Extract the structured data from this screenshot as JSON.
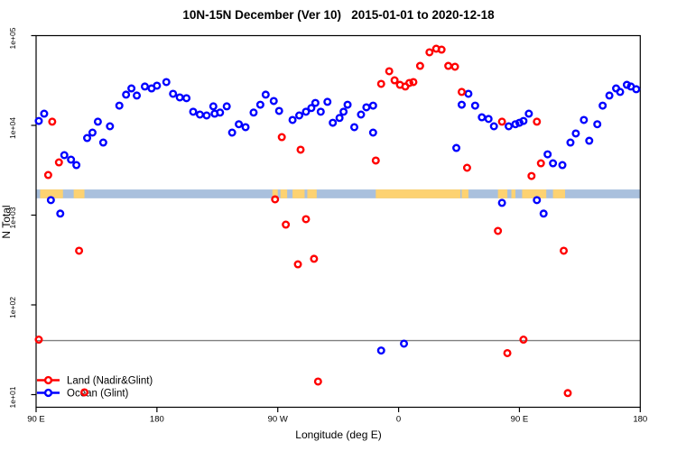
{
  "chart_data": {
    "type": "scatter",
    "title": "10N-15N December (Ver 10)   2015-01-01 to 2020-12-18",
    "xlabel": "Longitude (deg E)",
    "ylabel": "N Total",
    "x_axis": {
      "tick_labels": [
        "90 E",
        "180",
        "90 W",
        "0",
        "90 E",
        "180"
      ],
      "tick_plot_lons": [
        90,
        180,
        270,
        360,
        450,
        540
      ],
      "range_plot_lon": [
        90,
        540
      ],
      "wrap_note": "axis starts at 90E, wraps through 180, 90W, 0, back to 180; plot longitudes >180 shown as west/east wrapped labels"
    },
    "y_axis": {
      "scale": "log10",
      "tick_labels": [
        "1e+05",
        "1e+04",
        "1e+03",
        "1e+02",
        "1e+01"
      ],
      "tick_values": [
        100000,
        10000,
        1000,
        100,
        10
      ],
      "range": [
        10,
        100000
      ]
    },
    "reference_line": {
      "value": 40,
      "color": "#808080"
    },
    "map_strip": {
      "description": "thin world-map band at 10N-15N drawn across the plot",
      "value_top": 1930,
      "value_bottom": 1540,
      "ocean_color": "#a9c0dd",
      "land_color": "#fdd271",
      "land_segments_plot_lon": [
        [
          93,
          110
        ],
        [
          118,
          126
        ],
        [
          266,
          270
        ],
        [
          272,
          277
        ],
        [
          281,
          290
        ],
        [
          292,
          299
        ],
        [
          343,
          406
        ],
        [
          407,
          412
        ],
        [
          434,
          441
        ],
        [
          444,
          447
        ],
        [
          452,
          470
        ],
        [
          475,
          484
        ]
      ]
    },
    "legend": {
      "position": "bottom-left"
    },
    "series": [
      {
        "name": "Land (Nadir&Glint)",
        "color": "#ff0000",
        "marker": "open-circle",
        "points": [
          [
            92,
            41
          ],
          [
            99,
            2800
          ],
          [
            102,
            11000
          ],
          [
            107,
            3870
          ],
          [
            122,
            401
          ],
          [
            126,
            10.6
          ],
          [
            268,
            1500
          ],
          [
            273,
            7400
          ],
          [
            276,
            784
          ],
          [
            285,
            283
          ],
          [
            287,
            5360
          ],
          [
            291,
            902
          ],
          [
            297,
            326
          ],
          [
            300,
            14
          ],
          [
            343,
            4060
          ],
          [
            347,
            29000
          ],
          [
            353,
            40100
          ],
          [
            357,
            31800
          ],
          [
            361,
            28300
          ],
          [
            365,
            27100
          ],
          [
            368,
            29700
          ],
          [
            371,
            30400
          ],
          [
            376,
            46000
          ],
          [
            383,
            65200
          ],
          [
            388,
            71500
          ],
          [
            392,
            69800
          ],
          [
            397,
            46000
          ],
          [
            402,
            45000
          ],
          [
            407,
            23600
          ],
          [
            411,
            3370
          ],
          [
            434,
            667
          ],
          [
            437,
            11000
          ],
          [
            441,
            29
          ],
          [
            453,
            41
          ],
          [
            459,
            2730
          ],
          [
            463,
            11000
          ],
          [
            466,
            3780
          ],
          [
            483,
            401
          ],
          [
            486,
            10.4
          ]
        ]
      },
      {
        "name": "Ocean (Glint)",
        "color": "#0000ff",
        "marker": "open-circle",
        "points": [
          [
            92,
            11200
          ],
          [
            96,
            13500
          ],
          [
            101,
            1470
          ],
          [
            108,
            1040
          ],
          [
            111,
            4660
          ],
          [
            116,
            4150
          ],
          [
            120,
            3610
          ],
          [
            128,
            7230
          ],
          [
            132,
            8310
          ],
          [
            136,
            11000
          ],
          [
            140,
            6440
          ],
          [
            145,
            9770
          ],
          [
            152,
            16600
          ],
          [
            157,
            22000
          ],
          [
            161,
            25800
          ],
          [
            165,
            21500
          ],
          [
            171,
            27100
          ],
          [
            176,
            25800
          ],
          [
            180,
            27700
          ],
          [
            187,
            30400
          ],
          [
            192,
            22500
          ],
          [
            197,
            20500
          ],
          [
            202,
            20100
          ],
          [
            207,
            14200
          ],
          [
            212,
            13200
          ],
          [
            217,
            12900
          ],
          [
            222,
            16300
          ],
          [
            223,
            13500
          ],
          [
            227,
            13900
          ],
          [
            232,
            16300
          ],
          [
            236,
            8310
          ],
          [
            241,
            10300
          ],
          [
            246,
            9550
          ],
          [
            252,
            13900
          ],
          [
            257,
            17000
          ],
          [
            261,
            22000
          ],
          [
            267,
            18700
          ],
          [
            271,
            14500
          ],
          [
            281,
            11500
          ],
          [
            286,
            12900
          ],
          [
            291,
            14200
          ],
          [
            295,
            15600
          ],
          [
            298,
            17800
          ],
          [
            302,
            14200
          ],
          [
            307,
            18300
          ],
          [
            311,
            10700
          ],
          [
            316,
            12100
          ],
          [
            319,
            14200
          ],
          [
            322,
            17000
          ],
          [
            327,
            9550
          ],
          [
            332,
            13200
          ],
          [
            336,
            15900
          ],
          [
            341,
            8310
          ],
          [
            341,
            16600
          ],
          [
            347,
            31
          ],
          [
            364,
            37
          ],
          [
            403,
            5600
          ],
          [
            407,
            17000
          ],
          [
            412,
            22500
          ],
          [
            417,
            16600
          ],
          [
            422,
            12300
          ],
          [
            427,
            11800
          ],
          [
            431,
            9770
          ],
          [
            437,
            1370
          ],
          [
            442,
            9770
          ],
          [
            447,
            10300
          ],
          [
            450,
            10700
          ],
          [
            453,
            11200
          ],
          [
            457,
            13500
          ],
          [
            463,
            1470
          ],
          [
            468,
            1040
          ],
          [
            471,
            4760
          ],
          [
            475,
            3780
          ],
          [
            482,
            3610
          ],
          [
            488,
            6440
          ],
          [
            492,
            8130
          ],
          [
            498,
            11500
          ],
          [
            502,
            6740
          ],
          [
            508,
            10300
          ],
          [
            512,
            16600
          ],
          [
            517,
            21500
          ],
          [
            522,
            25800
          ],
          [
            525,
            23600
          ],
          [
            530,
            28300
          ],
          [
            533,
            27100
          ],
          [
            537,
            25300
          ]
        ]
      }
    ]
  }
}
